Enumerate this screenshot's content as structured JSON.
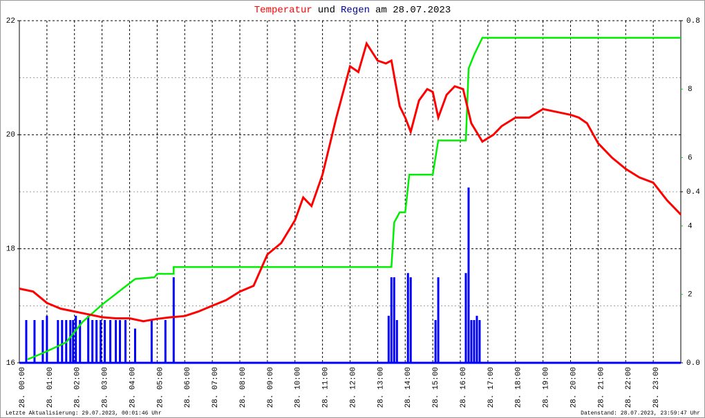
{
  "chart_data": {
    "type": "line",
    "title": [
      {
        "text": "Temperatur",
        "color": "#ff0000"
      },
      {
        "text": "und",
        "color": "#000000"
      },
      {
        "text": "Regen",
        "color": "#000099"
      },
      {
        "text": "am 28.07.2023",
        "color": "#000000"
      }
    ],
    "footer_left": "Letzte Aktualisierung: 29.07.2023, 00:01:46 Uhr",
    "footer_right": "Datenstand: 28.07.2023, 23:59:47 Uhr",
    "xlim": [
      0,
      24
    ],
    "xticks": [
      {
        "value": 0,
        "label": "28. 00:00"
      },
      {
        "value": 1,
        "label": "28. 01:00"
      },
      {
        "value": 2,
        "label": "28. 02:00"
      },
      {
        "value": 3,
        "label": "28. 03:00"
      },
      {
        "value": 4,
        "label": "28. 04:00"
      },
      {
        "value": 5,
        "label": "28. 05:00"
      },
      {
        "value": 6,
        "label": "28. 06:00"
      },
      {
        "value": 7,
        "label": "28. 07:00"
      },
      {
        "value": 8,
        "label": "28. 08:00"
      },
      {
        "value": 9,
        "label": "28. 09:00"
      },
      {
        "value": 10,
        "label": "28. 10:00"
      },
      {
        "value": 11,
        "label": "28. 11:00"
      },
      {
        "value": 12,
        "label": "28. 12:00"
      },
      {
        "value": 13,
        "label": "28. 13:00"
      },
      {
        "value": 14,
        "label": "28. 14:00"
      },
      {
        "value": 15,
        "label": "28. 15:00"
      },
      {
        "value": 16,
        "label": "28. 16:00"
      },
      {
        "value": 17,
        "label": "28. 17:00"
      },
      {
        "value": 18,
        "label": "28. 18:00"
      },
      {
        "value": 19,
        "label": "28. 19:00"
      },
      {
        "value": 20,
        "label": "28. 20:00"
      },
      {
        "value": 21,
        "label": "28. 21:00"
      },
      {
        "value": 22,
        "label": "28. 22:00"
      },
      {
        "value": 23,
        "label": "28. 23:00"
      }
    ],
    "ylim": [
      16,
      22
    ],
    "yticks": [
      16,
      18,
      20,
      22
    ],
    "yminor": [
      17,
      19,
      21
    ],
    "y2lim": [
      0,
      10
    ],
    "y2ticks": [
      2,
      4,
      6,
      8
    ],
    "y2color": "#00cc00",
    "y3lim": [
      0,
      0.8
    ],
    "y3ticks": [
      {
        "value": 0,
        "label": "0.0"
      },
      0.4,
      0.8
    ],
    "grid": true,
    "series": [
      {
        "type": "line",
        "axis": "y",
        "color": "#ff0000",
        "x": [
          0,
          0.5,
          1,
          1.5,
          2,
          2.5,
          3,
          3.5,
          4,
          4.5,
          5,
          5.5,
          6,
          6.5,
          7,
          7.5,
          8,
          8.5,
          9,
          9.5,
          10,
          10.3,
          10.6,
          11,
          11.5,
          12,
          12.3,
          12.6,
          13,
          13.3,
          13.5,
          13.8,
          14,
          14.2,
          14.5,
          14.8,
          15,
          15.2,
          15.5,
          15.8,
          16.1,
          16.4,
          16.8,
          17.2,
          17.5,
          18,
          18.5,
          19,
          19.5,
          20,
          20.3,
          20.6,
          21,
          21.5,
          22,
          22.5,
          23,
          23.5,
          24
        ],
        "values": [
          17.3,
          17.25,
          17.05,
          16.95,
          16.9,
          16.85,
          16.8,
          16.78,
          16.78,
          16.73,
          16.77,
          16.8,
          16.82,
          16.9,
          17.0,
          17.1,
          17.25,
          17.35,
          17.9,
          18.1,
          18.5,
          18.9,
          18.75,
          19.3,
          20.3,
          21.2,
          21.1,
          21.6,
          21.3,
          21.25,
          21.3,
          20.5,
          20.3,
          20.05,
          20.6,
          20.8,
          20.75,
          20.3,
          20.7,
          20.85,
          20.8,
          20.2,
          19.88,
          20.0,
          20.15,
          20.3,
          20.3,
          20.45,
          20.4,
          20.35,
          20.3,
          20.2,
          19.85,
          19.6,
          19.4,
          19.25,
          19.16,
          18.85,
          18.6
        ]
      },
      {
        "type": "step",
        "axis": "y2",
        "color": "#00ee00",
        "x": [
          0.3,
          0.9,
          1.7,
          2.3,
          3.0,
          3.8,
          4.2,
          4.9,
          5.0,
          5.6,
          5.6,
          13.5,
          13.6,
          13.8,
          14.0,
          14.15,
          15.0,
          15.2,
          16.2,
          16.3,
          16.5,
          16.8,
          24.0
        ],
        "values": [
          0.1,
          0.3,
          0.6,
          1.2,
          1.7,
          2.2,
          2.45,
          2.5,
          2.6,
          2.6,
          2.8,
          2.8,
          4.1,
          4.4,
          4.4,
          5.5,
          5.5,
          6.5,
          6.5,
          8.6,
          9.0,
          9.5,
          9.5
        ]
      },
      {
        "type": "bar",
        "axis": "y3",
        "color": "#0000ff",
        "x": [
          0.25,
          0.55,
          0.85,
          1.0,
          1.4,
          1.55,
          1.7,
          1.85,
          1.95,
          2.05,
          2.2,
          2.5,
          2.65,
          2.8,
          2.95,
          3.1,
          3.3,
          3.5,
          3.65,
          3.85,
          4.2,
          4.8,
          5.3,
          5.6,
          13.4,
          13.5,
          13.6,
          13.7,
          14.1,
          14.2,
          15.1,
          15.2,
          16.2,
          16.3,
          16.4,
          16.5,
          16.6,
          16.7
        ],
        "values": [
          0.1,
          0.1,
          0.1,
          0.11,
          0.1,
          0.1,
          0.1,
          0.1,
          0.1,
          0.11,
          0.1,
          0.11,
          0.1,
          0.1,
          0.1,
          0.1,
          0.1,
          0.1,
          0.1,
          0.1,
          0.08,
          0.1,
          0.1,
          0.2,
          0.11,
          0.2,
          0.2,
          0.1,
          0.21,
          0.2,
          0.1,
          0.2,
          0.21,
          0.41,
          0.1,
          0.1,
          0.11,
          0.1
        ]
      }
    ]
  }
}
